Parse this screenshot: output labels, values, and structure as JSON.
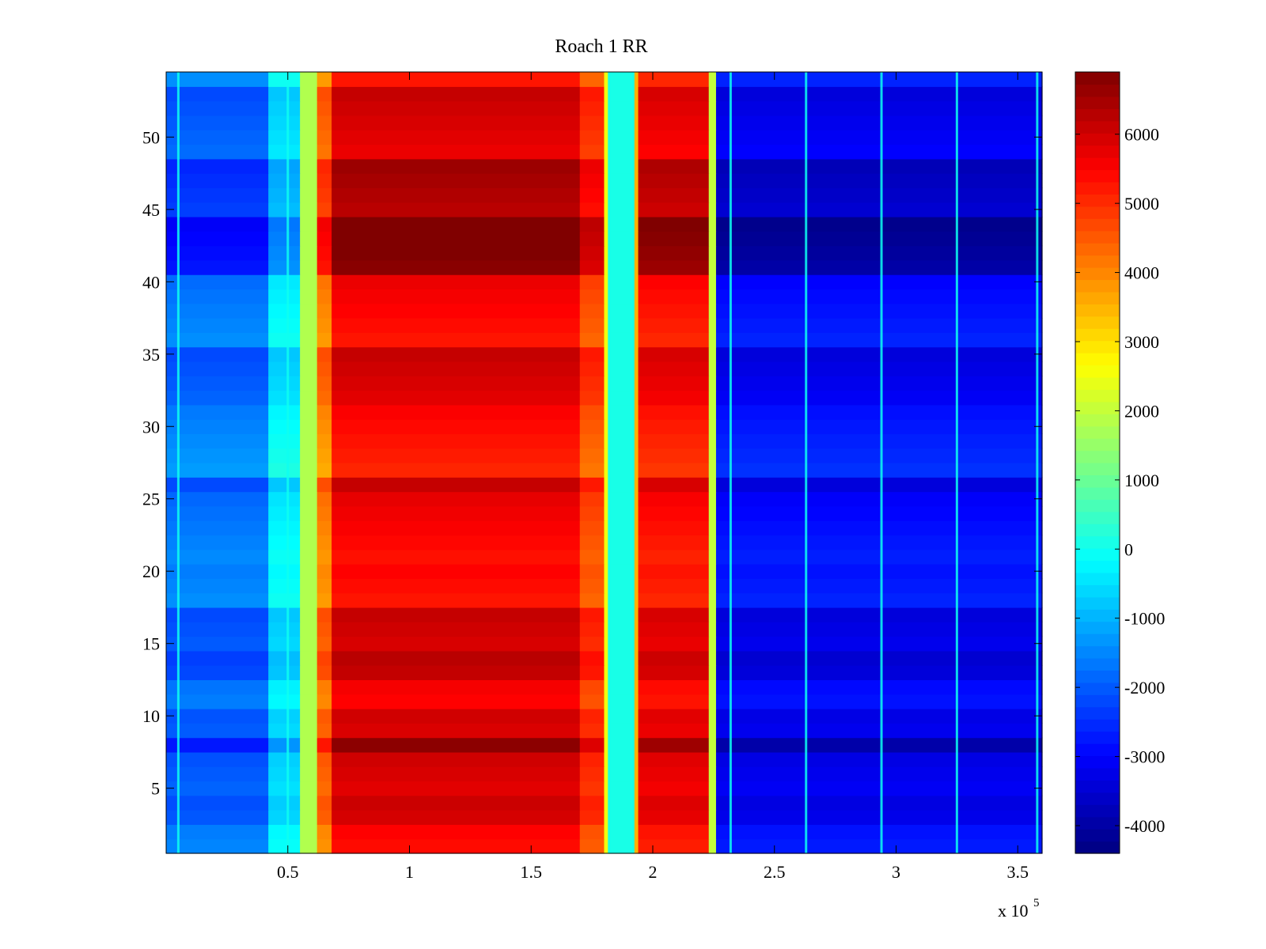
{
  "chart_data": {
    "type": "heatmap",
    "title": "Roach 1 RR",
    "xlabel": "",
    "ylabel": "",
    "x_exponent_label": "x 10",
    "x_exponent_power": "5",
    "xlim": [
      0,
      3.6
    ],
    "ylim": [
      0.5,
      54.5
    ],
    "x_ticks": [
      0.5,
      1,
      1.5,
      2,
      2.5,
      3,
      3.5
    ],
    "x_tick_labels": [
      "0.5",
      "1",
      "1.5",
      "2",
      "2.5",
      "3",
      "3.5"
    ],
    "y_ticks": [
      5,
      10,
      15,
      20,
      25,
      30,
      35,
      40,
      45,
      50
    ],
    "y_tick_labels": [
      "5",
      "10",
      "15",
      "20",
      "25",
      "30",
      "35",
      "40",
      "45",
      "50"
    ],
    "colormap": "jet",
    "clim": [
      -4400,
      6900
    ],
    "colorbar_ticks": [
      6000,
      5000,
      4000,
      3000,
      2000,
      1000,
      0,
      -1000,
      -2000,
      -3000,
      -4000
    ],
    "colorbar_tick_labels": [
      "6000",
      "5000",
      "4000",
      "3000",
      "2000",
      "1000",
      "0",
      "-1000",
      "-2000",
      "-3000",
      "-4000"
    ],
    "rows": 54,
    "column_segments": [
      {
        "x_start": 0,
        "x_end": 0.42,
        "value": -1800
      },
      {
        "x_start": 0.42,
        "x_end": 0.55,
        "value": -400
      },
      {
        "x_start": 0.55,
        "x_end": 0.62,
        "value": 1800
      },
      {
        "x_start": 0.62,
        "x_end": 0.68,
        "value": 4200
      },
      {
        "x_start": 0.68,
        "x_end": 1.7,
        "value": 5700
      },
      {
        "x_start": 1.7,
        "x_end": 1.8,
        "value": 4800
      },
      {
        "x_start": 1.8,
        "x_end": 1.82,
        "value": 2500
      },
      {
        "x_start": 1.82,
        "x_end": 1.92,
        "value": 100
      },
      {
        "x_start": 1.92,
        "x_end": 1.94,
        "value": 3500
      },
      {
        "x_start": 1.94,
        "x_end": 2.23,
        "value": 5500
      },
      {
        "x_start": 2.23,
        "x_end": 2.26,
        "value": 2000
      },
      {
        "x_start": 2.26,
        "x_end": 3.6,
        "value": -3000
      }
    ],
    "row_offsets": [
      {
        "y_start": 40.5,
        "y_end": 48.5,
        "value": 1100
      },
      {
        "y_start": 7.5,
        "y_end": 10.5,
        "value": 700
      },
      {
        "y_start": 12.5,
        "y_end": 14.5,
        "value": 500
      },
      {
        "y_start": 2.5,
        "y_end": 4.5,
        "value": 400
      },
      {
        "y_start": 20.5,
        "y_end": 25.5,
        "value": -300
      },
      {
        "y_start": 26.5,
        "y_end": 31.5,
        "value": -200
      }
    ],
    "bright_lines_x": [
      0.05,
      0.5,
      1.82,
      1.92,
      2.32,
      2.63,
      2.94,
      3.25,
      3.58
    ]
  }
}
